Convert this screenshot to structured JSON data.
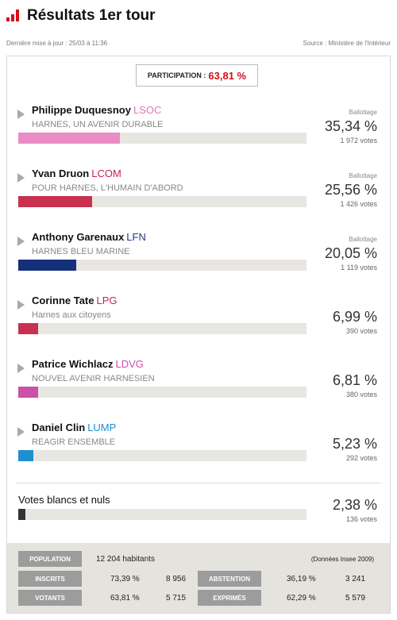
{
  "header": {
    "title": "Résultats 1er tour"
  },
  "meta": {
    "updated": "Dernière mise à jour : 25/03 à 11:36",
    "source": "Source : Ministère de l'Intérieur"
  },
  "participation": {
    "label": "PARTICIPATION :",
    "value": "63,81 %"
  },
  "candidates": [
    {
      "name": "Philippe Duquesnoy",
      "party": "LSOC",
      "party_color": "#e07ab8",
      "list": "HARNES, UN AVENIR DURABLE",
      "status": "Ballottage",
      "percent": "35,34 %",
      "votes": "1 972 votes",
      "bar_fraction": 0.3534,
      "bar_color": "#ea8cc5"
    },
    {
      "name": "Yvan Druon",
      "party": "LCOM",
      "party_color": "#c8224a",
      "list": "POUR HARNES, L'HUMAIN D'ABORD",
      "status": "Ballottage",
      "percent": "25,56 %",
      "votes": "1 426 votes",
      "bar_fraction": 0.2556,
      "bar_color": "#c8304f"
    },
    {
      "name": "Anthony Garenaux",
      "party": "LFN",
      "party_color": "#1e3b8a",
      "list": "HARNES BLEU MARINE",
      "status": "Ballottage",
      "percent": "20,05 %",
      "votes": "1 119 votes",
      "bar_fraction": 0.2005,
      "bar_color": "#15307a"
    },
    {
      "name": "Corinne Tate",
      "party": "LPG",
      "party_color": "#c8224a",
      "list": "Harnes aux citoyens",
      "status": "",
      "percent": "6,99 %",
      "votes": "390 votes",
      "bar_fraction": 0.0699,
      "bar_color": "#c8304f"
    },
    {
      "name": "Patrice Wichlacz",
      "party": "LDVG",
      "party_color": "#cc4fa8",
      "list": "NOUVEL AVENIR HARNESIEN",
      "status": "",
      "percent": "6,81 %",
      "votes": "380 votes",
      "bar_fraction": 0.0681,
      "bar_color": "#cc4fa8"
    },
    {
      "name": "Daniel Clin",
      "party": "LUMP",
      "party_color": "#1e8fcf",
      "list": "REAGIR ENSEMBLE",
      "status": "",
      "percent": "5,23 %",
      "votes": "292 votes",
      "bar_fraction": 0.0523,
      "bar_color": "#1e8fcf"
    }
  ],
  "blank": {
    "label": "Votes blancs et nuls",
    "percent": "2,38 %",
    "votes": "136 votes",
    "bar_fraction": 0.0238,
    "bar_color": "#333333"
  },
  "stats": {
    "population_label": "POPULATION",
    "population_value": "12 204 habitants",
    "population_note": "(Données Insee 2009)",
    "inscrits_label": "INSCRITS",
    "inscrits_pct": "73,39 %",
    "inscrits_count": "8 956",
    "abstention_label": "ABSTENTION",
    "abstention_pct": "36,19 %",
    "abstention_count": "3 241",
    "votants_label": "VOTANTS",
    "votants_pct": "63,81 %",
    "votants_count": "5 715",
    "exprimes_label": "EXPRIMÉS",
    "exprimes_pct": "62,29 %",
    "exprimes_count": "5 579"
  }
}
